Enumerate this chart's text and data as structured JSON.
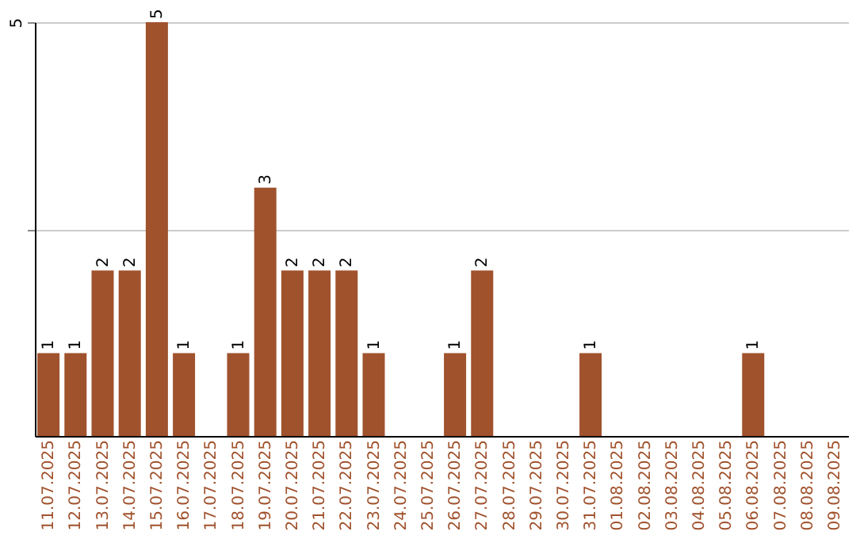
{
  "chart_data": {
    "type": "bar",
    "categories": [
      "11.07.2025",
      "12.07.2025",
      "13.07.2025",
      "14.07.2025",
      "15.07.2025",
      "16.07.2025",
      "17.07.2025",
      "18.07.2025",
      "19.07.2025",
      "20.07.2025",
      "21.07.2025",
      "22.07.2025",
      "23.07.2025",
      "24.07.2025",
      "25.07.2025",
      "26.07.2025",
      "27.07.2025",
      "28.07.2025",
      "29.07.2025",
      "30.07.2025",
      "31.07.2025",
      "01.08.2025",
      "02.08.2025",
      "03.08.2025",
      "04.08.2025",
      "05.08.2025",
      "06.08.2025",
      "07.08.2025",
      "08.08.2025",
      "09.08.2025"
    ],
    "values": [
      1,
      1,
      2,
      2,
      5,
      1,
      0,
      1,
      3,
      2,
      2,
      2,
      1,
      0,
      0,
      1,
      2,
      0,
      0,
      0,
      1,
      0,
      0,
      0,
      0,
      0,
      1,
      0,
      0,
      0
    ],
    "value_labels": [
      "1",
      "1",
      "2",
      "2",
      "5",
      "1",
      null,
      "1",
      "3",
      "2",
      "2",
      "2",
      "1",
      null,
      null,
      "1",
      "2",
      null,
      null,
      null,
      "1",
      null,
      null,
      null,
      null,
      null,
      "1",
      null,
      null,
      null
    ],
    "color": "#a0522d",
    "ylim": [
      0,
      5
    ],
    "yticks": [
      {
        "value": 2.5,
        "label": null
      },
      5
    ],
    "grid": "y"
  }
}
